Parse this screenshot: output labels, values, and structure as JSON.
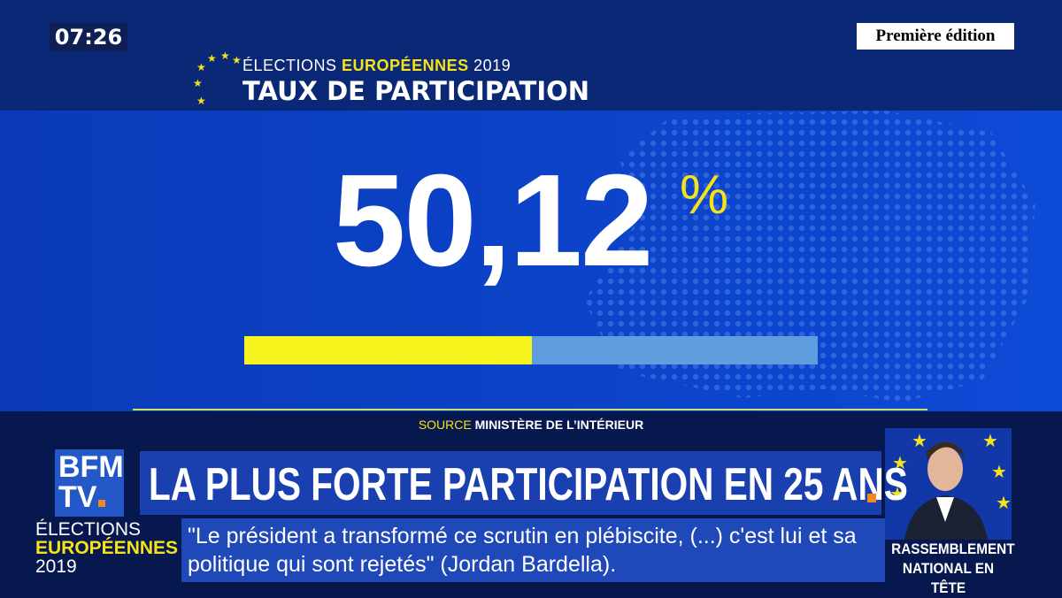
{
  "clock": "07:26",
  "program": "Première édition",
  "header": {
    "line1_prefix": "ÉLECTIONS",
    "line1_highlight": "EUROPÉENNES",
    "line1_suffix": "2019",
    "title": "TAUX DE PARTICIPATION"
  },
  "turnout": {
    "label": "50,12",
    "unit": "%",
    "value": 50.12,
    "range": [
      0,
      100
    ]
  },
  "source": {
    "prefix": "SOURCE",
    "text": "MINISTÈRE DE L’INTÉRIEUR"
  },
  "logo": {
    "line1": "BFM",
    "line2": "TV"
  },
  "headline": "LA PLUS FORTE PARTICIPATION EN 25 ANS",
  "ticker_tag": {
    "line1": "ÉLECTIONS",
    "line2": "EUROPÉENNES",
    "line3": "2019"
  },
  "quote": "\"Le président a transformé ce scrutin en plébiscite, (...) c'est lui et sa politique qui sont rejetés\" (Jordan Bardella).",
  "side_caption": {
    "line1": "RASSEMBLEMENT",
    "line2": "NATIONAL EN TÊTE"
  }
}
